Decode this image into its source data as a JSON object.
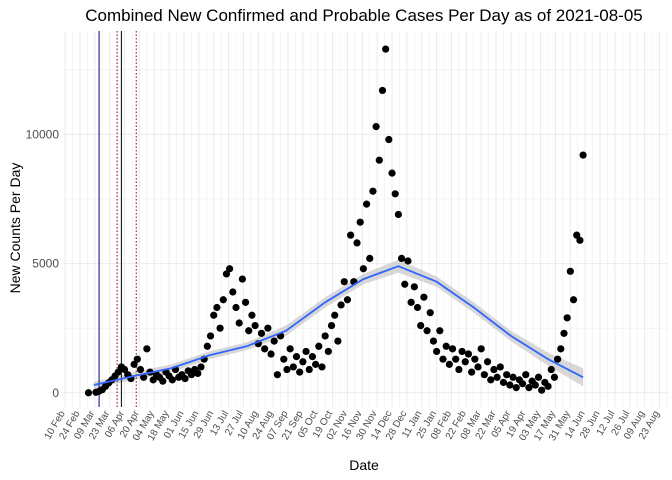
{
  "chart_data": {
    "type": "scatter",
    "title": "Combined New Confirmed and Probable Cases Per Day as of 2021-08-05",
    "xlabel": "Date",
    "ylabel": "New Counts Per Day",
    "y_ticks": [
      0,
      5000,
      10000
    ],
    "ylim": [
      -550,
      14000
    ],
    "xlim": [
      "2020-02-08",
      "2021-08-31"
    ],
    "x_tick_labels": [
      "10 Feb",
      "24 Feb",
      "09 Mar",
      "23 Mar",
      "06 Apr",
      "20 Apr",
      "04 May",
      "18 May",
      "01 Jun",
      "15 Jun",
      "29 Jun",
      "13 Jul",
      "27 Jul",
      "10 Aug",
      "24 Aug",
      "07 Sep",
      "21 Sep",
      "05 Oct",
      "19 Oct",
      "02 Nov",
      "16 Nov",
      "30 Nov",
      "14 Dec",
      "28 Dec",
      "11 Jan",
      "25 Jan",
      "08 Feb",
      "22 Feb",
      "08 Mar",
      "22 Mar",
      "05 Apr",
      "19 Apr",
      "03 May",
      "17 May",
      "31 May",
      "14 Jun",
      "28 Jun",
      "12 Jul",
      "26 Jul",
      "09 Aug",
      "23 Aug"
    ],
    "vlines": [
      {
        "date": "2020-03-13",
        "color": "#00008b",
        "style": "solid"
      },
      {
        "date": "2020-03-30",
        "color": "#8b0000",
        "style": "dotted"
      },
      {
        "date": "2020-04-03",
        "color": "#000000",
        "style": "solid"
      },
      {
        "date": "2020-04-17",
        "color": "#8b0000",
        "style": "dotted"
      }
    ],
    "grid": true,
    "point_color": "#000000",
    "smooth_color": "#3366ff",
    "band_color": "#bebebe",
    "series": [
      {
        "values": [
          {
            "x": "2020-03-03",
            "y": 0
          },
          {
            "x": "2020-03-10",
            "y": 20
          },
          {
            "x": "2020-03-13",
            "y": 60
          },
          {
            "x": "2020-03-16",
            "y": 120
          },
          {
            "x": "2020-03-19",
            "y": 250
          },
          {
            "x": "2020-03-22",
            "y": 380
          },
          {
            "x": "2020-03-25",
            "y": 500
          },
          {
            "x": "2020-03-28",
            "y": 650
          },
          {
            "x": "2020-03-31",
            "y": 800
          },
          {
            "x": "2020-04-03",
            "y": 1000
          },
          {
            "x": "2020-04-06",
            "y": 900
          },
          {
            "x": "2020-04-09",
            "y": 700
          },
          {
            "x": "2020-04-12",
            "y": 550
          },
          {
            "x": "2020-04-15",
            "y": 1100
          },
          {
            "x": "2020-04-18",
            "y": 1300
          },
          {
            "x": "2020-04-21",
            "y": 900
          },
          {
            "x": "2020-04-24",
            "y": 600
          },
          {
            "x": "2020-04-27",
            "y": 1700
          },
          {
            "x": "2020-04-30",
            "y": 800
          },
          {
            "x": "2020-05-03",
            "y": 500
          },
          {
            "x": "2020-05-06",
            "y": 700
          },
          {
            "x": "2020-05-09",
            "y": 600
          },
          {
            "x": "2020-05-12",
            "y": 450
          },
          {
            "x": "2020-05-15",
            "y": 800
          },
          {
            "x": "2020-05-18",
            "y": 650
          },
          {
            "x": "2020-05-21",
            "y": 500
          },
          {
            "x": "2020-05-24",
            "y": 900
          },
          {
            "x": "2020-05-27",
            "y": 600
          },
          {
            "x": "2020-05-30",
            "y": 700
          },
          {
            "x": "2020-06-02",
            "y": 550
          },
          {
            "x": "2020-06-05",
            "y": 850
          },
          {
            "x": "2020-06-08",
            "y": 700
          },
          {
            "x": "2020-06-11",
            "y": 900
          },
          {
            "x": "2020-06-14",
            "y": 750
          },
          {
            "x": "2020-06-17",
            "y": 1000
          },
          {
            "x": "2020-06-20",
            "y": 1300
          },
          {
            "x": "2020-06-23",
            "y": 1800
          },
          {
            "x": "2020-06-26",
            "y": 2200
          },
          {
            "x": "2020-06-29",
            "y": 3000
          },
          {
            "x": "2020-07-02",
            "y": 3300
          },
          {
            "x": "2020-07-05",
            "y": 2500
          },
          {
            "x": "2020-07-08",
            "y": 3600
          },
          {
            "x": "2020-07-11",
            "y": 4600
          },
          {
            "x": "2020-07-14",
            "y": 4800
          },
          {
            "x": "2020-07-17",
            "y": 3900
          },
          {
            "x": "2020-07-20",
            "y": 3300
          },
          {
            "x": "2020-07-23",
            "y": 2700
          },
          {
            "x": "2020-07-26",
            "y": 4400
          },
          {
            "x": "2020-07-29",
            "y": 3500
          },
          {
            "x": "2020-08-01",
            "y": 2400
          },
          {
            "x": "2020-08-04",
            "y": 3000
          },
          {
            "x": "2020-08-07",
            "y": 2600
          },
          {
            "x": "2020-08-10",
            "y": 1900
          },
          {
            "x": "2020-08-13",
            "y": 2300
          },
          {
            "x": "2020-08-16",
            "y": 1700
          },
          {
            "x": "2020-08-19",
            "y": 2500
          },
          {
            "x": "2020-08-22",
            "y": 1500
          },
          {
            "x": "2020-08-25",
            "y": 2000
          },
          {
            "x": "2020-08-28",
            "y": 700
          },
          {
            "x": "2020-08-31",
            "y": 2200
          },
          {
            "x": "2020-09-03",
            "y": 1300
          },
          {
            "x": "2020-09-06",
            "y": 900
          },
          {
            "x": "2020-09-09",
            "y": 1700
          },
          {
            "x": "2020-09-12",
            "y": 1000
          },
          {
            "x": "2020-09-15",
            "y": 1400
          },
          {
            "x": "2020-09-18",
            "y": 800
          },
          {
            "x": "2020-09-21",
            "y": 1200
          },
          {
            "x": "2020-09-24",
            "y": 1600
          },
          {
            "x": "2020-09-27",
            "y": 900
          },
          {
            "x": "2020-09-30",
            "y": 1400
          },
          {
            "x": "2020-10-03",
            "y": 1100
          },
          {
            "x": "2020-10-06",
            "y": 1800
          },
          {
            "x": "2020-10-09",
            "y": 1000
          },
          {
            "x": "2020-10-12",
            "y": 2200
          },
          {
            "x": "2020-10-15",
            "y": 1600
          },
          {
            "x": "2020-10-18",
            "y": 2600
          },
          {
            "x": "2020-10-21",
            "y": 3000
          },
          {
            "x": "2020-10-24",
            "y": 2000
          },
          {
            "x": "2020-10-27",
            "y": 3400
          },
          {
            "x": "2020-10-30",
            "y": 4300
          },
          {
            "x": "2020-11-02",
            "y": 3600
          },
          {
            "x": "2020-11-05",
            "y": 6100
          },
          {
            "x": "2020-11-08",
            "y": 4300
          },
          {
            "x": "2020-11-11",
            "y": 5800
          },
          {
            "x": "2020-11-14",
            "y": 6600
          },
          {
            "x": "2020-11-17",
            "y": 4800
          },
          {
            "x": "2020-11-20",
            "y": 7300
          },
          {
            "x": "2020-11-23",
            "y": 5200
          },
          {
            "x": "2020-11-26",
            "y": 7800
          },
          {
            "x": "2020-11-29",
            "y": 10300
          },
          {
            "x": "2020-12-02",
            "y": 9000
          },
          {
            "x": "2020-12-05",
            "y": 11700
          },
          {
            "x": "2020-12-08",
            "y": 13300
          },
          {
            "x": "2020-12-11",
            "y": 9800
          },
          {
            "x": "2020-12-14",
            "y": 8500
          },
          {
            "x": "2020-12-17",
            "y": 7700
          },
          {
            "x": "2020-12-20",
            "y": 6900
          },
          {
            "x": "2020-12-23",
            "y": 5200
          },
          {
            "x": "2020-12-26",
            "y": 4200
          },
          {
            "x": "2020-12-29",
            "y": 5100
          },
          {
            "x": "2021-01-01",
            "y": 3500
          },
          {
            "x": "2021-01-04",
            "y": 4100
          },
          {
            "x": "2021-01-07",
            "y": 3300
          },
          {
            "x": "2021-01-10",
            "y": 2600
          },
          {
            "x": "2021-01-13",
            "y": 3700
          },
          {
            "x": "2021-01-16",
            "y": 2400
          },
          {
            "x": "2021-01-19",
            "y": 3100
          },
          {
            "x": "2021-01-22",
            "y": 2000
          },
          {
            "x": "2021-01-25",
            "y": 1600
          },
          {
            "x": "2021-01-28",
            "y": 2400
          },
          {
            "x": "2021-01-31",
            "y": 1300
          },
          {
            "x": "2021-02-03",
            "y": 1800
          },
          {
            "x": "2021-02-06",
            "y": 1100
          },
          {
            "x": "2021-02-09",
            "y": 1700
          },
          {
            "x": "2021-02-12",
            "y": 1300
          },
          {
            "x": "2021-02-15",
            "y": 900
          },
          {
            "x": "2021-02-18",
            "y": 1600
          },
          {
            "x": "2021-02-21",
            "y": 1200
          },
          {
            "x": "2021-02-24",
            "y": 1500
          },
          {
            "x": "2021-02-27",
            "y": 800
          },
          {
            "x": "2021-03-02",
            "y": 1300
          },
          {
            "x": "2021-03-05",
            "y": 1000
          },
          {
            "x": "2021-03-08",
            "y": 1700
          },
          {
            "x": "2021-03-11",
            "y": 700
          },
          {
            "x": "2021-03-14",
            "y": 1200
          },
          {
            "x": "2021-03-17",
            "y": 500
          },
          {
            "x": "2021-03-20",
            "y": 900
          },
          {
            "x": "2021-03-23",
            "y": 600
          },
          {
            "x": "2021-03-26",
            "y": 1000
          },
          {
            "x": "2021-03-29",
            "y": 400
          },
          {
            "x": "2021-04-01",
            "y": 700
          },
          {
            "x": "2021-04-04",
            "y": 300
          },
          {
            "x": "2021-04-07",
            "y": 600
          },
          {
            "x": "2021-04-10",
            "y": 200
          },
          {
            "x": "2021-04-13",
            "y": 500
          },
          {
            "x": "2021-04-16",
            "y": 350
          },
          {
            "x": "2021-04-19",
            "y": 700
          },
          {
            "x": "2021-04-22",
            "y": 200
          },
          {
            "x": "2021-04-25",
            "y": 450
          },
          {
            "x": "2021-04-28",
            "y": 300
          },
          {
            "x": "2021-05-01",
            "y": 600
          },
          {
            "x": "2021-05-04",
            "y": 100
          },
          {
            "x": "2021-05-07",
            "y": 400
          },
          {
            "x": "2021-05-10",
            "y": 250
          },
          {
            "x": "2021-05-13",
            "y": 900
          },
          {
            "x": "2021-05-16",
            "y": 600
          },
          {
            "x": "2021-05-19",
            "y": 1300
          },
          {
            "x": "2021-05-22",
            "y": 1700
          },
          {
            "x": "2021-05-25",
            "y": 2300
          },
          {
            "x": "2021-05-28",
            "y": 2900
          },
          {
            "x": "2021-05-31",
            "y": 4700
          },
          {
            "x": "2021-06-03",
            "y": 3600
          },
          {
            "x": "2021-06-06",
            "y": 6100
          },
          {
            "x": "2021-06-09",
            "y": 5900
          },
          {
            "x": "2021-06-12",
            "y": 9200
          }
        ]
      }
    ],
    "smooth": [
      {
        "x": "2020-03-08",
        "y": 300,
        "lo": 180,
        "hi": 420
      },
      {
        "x": "2020-04-15",
        "y": 650,
        "lo": 500,
        "hi": 800
      },
      {
        "x": "2020-05-20",
        "y": 950,
        "lo": 800,
        "hi": 1100
      },
      {
        "x": "2020-06-25",
        "y": 1450,
        "lo": 1300,
        "hi": 1600
      },
      {
        "x": "2020-07-30",
        "y": 1800,
        "lo": 1650,
        "hi": 1950
      },
      {
        "x": "2020-09-05",
        "y": 2400,
        "lo": 2200,
        "hi": 2600
      },
      {
        "x": "2020-10-12",
        "y": 3500,
        "lo": 3300,
        "hi": 3700
      },
      {
        "x": "2020-11-17",
        "y": 4400,
        "lo": 4200,
        "hi": 4600
      },
      {
        "x": "2020-12-20",
        "y": 4900,
        "lo": 4650,
        "hi": 5150
      },
      {
        "x": "2021-01-25",
        "y": 4300,
        "lo": 4100,
        "hi": 4500
      },
      {
        "x": "2021-03-01",
        "y": 3300,
        "lo": 3100,
        "hi": 3500
      },
      {
        "x": "2021-04-05",
        "y": 2200,
        "lo": 2000,
        "hi": 2400
      },
      {
        "x": "2021-05-10",
        "y": 1300,
        "lo": 1050,
        "hi": 1550
      },
      {
        "x": "2021-06-12",
        "y": 600,
        "lo": 250,
        "hi": 950
      }
    ]
  }
}
